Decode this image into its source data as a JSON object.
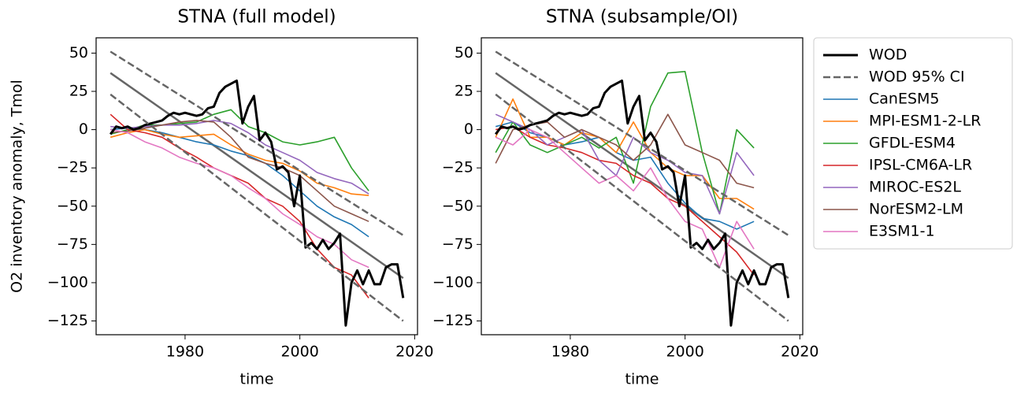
{
  "chart_data": [
    {
      "type": "line",
      "title": "STNA (full model)",
      "xlabel": "time",
      "ylabel": "O2 inventory anomaly, Tmol",
      "xlim": [
        1964.5,
        2020.5
      ],
      "ylim": [
        -134,
        60
      ],
      "xticks": [
        1980,
        2000,
        2020
      ],
      "yticks": [
        {
          "value": -125,
          "label": "−125"
        },
        {
          "value": -100,
          "label": "−100"
        },
        {
          "value": -75,
          "label": "−75"
        },
        {
          "value": -50,
          "label": "−50"
        },
        {
          "value": -25,
          "label": "−25"
        },
        0,
        25,
        50
      ],
      "legend": false,
      "trend": {
        "color": "#666666",
        "x": [
          1967,
          2018
        ],
        "values": [
          37,
          -97
        ]
      },
      "series": [
        {
          "name": "WOD",
          "color": "#000000",
          "linewidth": 3,
          "x": [
            1967,
            1968,
            1969,
            1970,
            1971,
            1972,
            1973,
            1974,
            1975,
            1976,
            1977,
            1978,
            1979,
            1980,
            1981,
            1982,
            1983,
            1984,
            1985,
            1986,
            1987,
            1988,
            1989,
            1990,
            1991,
            1992,
            1993,
            1994,
            1995,
            1996,
            1997,
            1998,
            1999,
            2000,
            2001,
            2002,
            2003,
            2004,
            2005,
            2006,
            2007,
            2008,
            2009,
            2010,
            2011,
            2012,
            2013,
            2014,
            2015,
            2016,
            2017,
            2018
          ],
          "values": [
            -3,
            2,
            1,
            2,
            0,
            1,
            3,
            4,
            5,
            6,
            9,
            11,
            10,
            11,
            10,
            9,
            10,
            14,
            15,
            24,
            28,
            30,
            32,
            4,
            15,
            22,
            -7,
            -2,
            -8,
            -26,
            -24,
            -28,
            -50,
            -30,
            -77,
            -74,
            -78,
            -72,
            -78,
            -74,
            -68,
            -128,
            -100,
            -92,
            -101,
            -92,
            -101,
            -101,
            -90,
            -88,
            -88,
            -110
          ]
        },
        {
          "name": "WOD 95% CI",
          "color": "#666666",
          "linewidth": 2.5,
          "linestyle": "dashed",
          "x": [
            1967,
            2018
          ],
          "values": [
            51,
            -69
          ],
          "lower_values": [
            23,
            -125
          ]
        },
        {
          "name": "CanESM5",
          "color": "#1f77b4",
          "x": [
            1967,
            1970,
            1973,
            1976,
            1979,
            1982,
            1985,
            1988,
            1991,
            1994,
            1997,
            2000,
            2003,
            2006,
            2009,
            2012
          ],
          "values": [
            0,
            1,
            0,
            -2,
            -5,
            -8,
            -10,
            -14,
            -17,
            -22,
            -30,
            -40,
            -50,
            -57,
            -62,
            -70
          ]
        },
        {
          "name": "MPI-ESM1-2-LR",
          "color": "#ff7f0e",
          "x": [
            1967,
            1970,
            1973,
            1976,
            1979,
            1982,
            1985,
            1988,
            1991,
            1994,
            1997,
            2000,
            2003,
            2006,
            2009,
            2012
          ],
          "values": [
            -5,
            -2,
            0,
            -3,
            -5,
            -4,
            -3,
            -10,
            -16,
            -20,
            -22,
            -27,
            -35,
            -38,
            -42,
            -43
          ]
        },
        {
          "name": "GFDL-ESM4",
          "color": "#2ca02c",
          "x": [
            1967,
            1970,
            1973,
            1976,
            1979,
            1982,
            1985,
            1988,
            1991,
            1994,
            1997,
            2000,
            2003,
            2006,
            2009,
            2012
          ],
          "values": [
            -3,
            0,
            3,
            3,
            4,
            5,
            10,
            13,
            2,
            -2,
            -8,
            -10,
            -8,
            -5,
            -25,
            -40
          ]
        },
        {
          "name": "IPSL-CM6A-LR",
          "color": "#d62728",
          "x": [
            1967,
            1970,
            1973,
            1976,
            1979,
            1982,
            1985,
            1988,
            1991,
            1994,
            1997,
            2000,
            2003,
            2006,
            2009,
            2012
          ],
          "values": [
            10,
            0,
            -2,
            -5,
            -12,
            -18,
            -25,
            -30,
            -35,
            -45,
            -50,
            -60,
            -78,
            -90,
            -95,
            -110
          ]
        },
        {
          "name": "MIROC-ES2L",
          "color": "#9467bd",
          "x": [
            1967,
            1970,
            1973,
            1976,
            1979,
            1982,
            1985,
            1988,
            1991,
            1994,
            1997,
            2000,
            2003,
            2006,
            2009,
            2012
          ],
          "values": [
            2,
            1,
            2,
            3,
            3,
            4,
            6,
            4,
            -2,
            -10,
            -15,
            -20,
            -28,
            -32,
            -35,
            -42
          ]
        },
        {
          "name": "NorESM2-LM",
          "color": "#8c564b",
          "x": [
            1967,
            1970,
            1973,
            1976,
            1979,
            1982,
            1985,
            1988,
            1991,
            1994,
            1997,
            2000,
            2003,
            2006,
            2009,
            2012
          ],
          "values": [
            -2,
            -1,
            1,
            3,
            5,
            6,
            5,
            -5,
            -18,
            -22,
            -25,
            -30,
            -40,
            -50,
            -55,
            -60
          ]
        },
        {
          "name": "E3SM1-1",
          "color": "#e377c2",
          "x": [
            1967,
            1970,
            1973,
            1976,
            1979,
            1982,
            1985,
            1988,
            1991,
            1994,
            1997,
            2000,
            2003,
            2006,
            2009,
            2012
          ],
          "values": [
            0,
            -2,
            -8,
            -12,
            -18,
            -22,
            -25,
            -30,
            -38,
            -45,
            -55,
            -62,
            -70,
            -75,
            -85,
            -90
          ]
        }
      ]
    },
    {
      "type": "line",
      "title": "STNA (subsample/OI)",
      "xlabel": "time",
      "xlim": [
        1964.5,
        2020.5
      ],
      "ylim": [
        -134,
        60
      ],
      "xticks": [
        1980,
        2000,
        2020
      ],
      "yticks": [
        {
          "value": -125,
          "label": "−125"
        },
        {
          "value": -100,
          "label": "−100"
        },
        {
          "value": -75,
          "label": "−75"
        },
        {
          "value": -50,
          "label": "−50"
        },
        {
          "value": -25,
          "label": "−25"
        },
        0,
        25,
        50
      ],
      "legend": "right",
      "trend": {
        "color": "#666666",
        "x": [
          1967,
          2018
        ],
        "values": [
          37,
          -97
        ]
      },
      "series": [
        {
          "name": "WOD",
          "color": "#000000",
          "linewidth": 3,
          "x": [
            1967,
            1968,
            1969,
            1970,
            1971,
            1972,
            1973,
            1974,
            1975,
            1976,
            1977,
            1978,
            1979,
            1980,
            1981,
            1982,
            1983,
            1984,
            1985,
            1986,
            1987,
            1988,
            1989,
            1990,
            1991,
            1992,
            1993,
            1994,
            1995,
            1996,
            1997,
            1998,
            1999,
            2000,
            2001,
            2002,
            2003,
            2004,
            2005,
            2006,
            2007,
            2008,
            2009,
            2010,
            2011,
            2012,
            2013,
            2014,
            2015,
            2016,
            2017,
            2018
          ],
          "values": [
            -3,
            2,
            1,
            2,
            0,
            1,
            3,
            4,
            5,
            6,
            9,
            11,
            10,
            11,
            10,
            9,
            10,
            14,
            15,
            24,
            28,
            30,
            32,
            4,
            15,
            22,
            -7,
            -2,
            -8,
            -26,
            -24,
            -28,
            -50,
            -30,
            -77,
            -74,
            -78,
            -72,
            -78,
            -74,
            -68,
            -128,
            -100,
            -92,
            -101,
            -92,
            -101,
            -101,
            -90,
            -88,
            -88,
            -110
          ]
        },
        {
          "name": "WOD 95% CI",
          "color": "#666666",
          "linewidth": 2.5,
          "linestyle": "dashed",
          "x": [
            1967,
            2018
          ],
          "values": [
            51,
            -69
          ],
          "lower_values": [
            23,
            -125
          ]
        },
        {
          "name": "CanESM5",
          "color": "#1f77b4",
          "x": [
            1967,
            1970,
            1973,
            1976,
            1979,
            1982,
            1985,
            1988,
            1991,
            1994,
            1997,
            2000,
            2003,
            2006,
            2009,
            2012
          ],
          "values": [
            2,
            5,
            -2,
            -5,
            -10,
            -8,
            -5,
            -15,
            -20,
            -18,
            -35,
            -48,
            -58,
            -60,
            -65,
            -60
          ]
        },
        {
          "name": "MPI-ESM1-2-LR",
          "color": "#ff7f0e",
          "x": [
            1967,
            1970,
            1973,
            1976,
            1979,
            1982,
            1985,
            1988,
            1991,
            1994,
            1997,
            2000,
            2003,
            2006,
            2009,
            2012
          ],
          "values": [
            -5,
            20,
            -5,
            -5,
            -10,
            -2,
            -5,
            -15,
            5,
            -15,
            -25,
            -30,
            -30,
            -45,
            -45,
            -52
          ]
        },
        {
          "name": "GFDL-ESM4",
          "color": "#2ca02c",
          "x": [
            1967,
            1970,
            1973,
            1976,
            1979,
            1982,
            1985,
            1988,
            1991,
            1994,
            1997,
            2000,
            2003,
            2006,
            2009,
            2012
          ],
          "values": [
            -15,
            5,
            -10,
            -15,
            -10,
            -5,
            -12,
            -5,
            -35,
            15,
            37,
            38,
            -15,
            -55,
            0,
            -12
          ]
        },
        {
          "name": "IPSL-CM6A-LR",
          "color": "#d62728",
          "x": [
            1967,
            1970,
            1973,
            1976,
            1979,
            1982,
            1985,
            1988,
            1991,
            1994,
            1997,
            2000,
            2003,
            2006,
            2009,
            2012
          ],
          "values": [
            0,
            2,
            -5,
            -10,
            -12,
            -15,
            -20,
            -22,
            -30,
            -35,
            -45,
            -50,
            -60,
            -70,
            -80,
            -95
          ]
        },
        {
          "name": "MIROC-ES2L",
          "color": "#9467bd",
          "x": [
            1967,
            1970,
            1973,
            1976,
            1979,
            1982,
            1985,
            1988,
            1991,
            1994,
            1997,
            2000,
            2003,
            2006,
            2009,
            2012
          ],
          "values": [
            10,
            5,
            0,
            -10,
            -5,
            0,
            -20,
            -30,
            -5,
            -15,
            -20,
            -28,
            -30,
            -55,
            -15,
            -30
          ]
        },
        {
          "name": "NorESM2-LM",
          "color": "#8c564b",
          "x": [
            1967,
            1970,
            1973,
            1976,
            1979,
            1982,
            1985,
            1988,
            1991,
            1994,
            1997,
            2000,
            2003,
            2006,
            2009,
            2012
          ],
          "values": [
            -22,
            0,
            3,
            5,
            -5,
            0,
            -5,
            -10,
            -20,
            -10,
            10,
            -10,
            -15,
            -20,
            -35,
            -38
          ]
        },
        {
          "name": "E3SM1-1",
          "color": "#e377c2",
          "x": [
            1967,
            1970,
            1973,
            1976,
            1979,
            1982,
            1985,
            1988,
            1991,
            1994,
            1997,
            2000,
            2003,
            2006,
            2009,
            2012
          ],
          "values": [
            -5,
            -10,
            0,
            -5,
            -15,
            -25,
            -35,
            -30,
            -40,
            -25,
            -45,
            -60,
            -65,
            -90,
            -60,
            -78
          ]
        }
      ]
    }
  ]
}
